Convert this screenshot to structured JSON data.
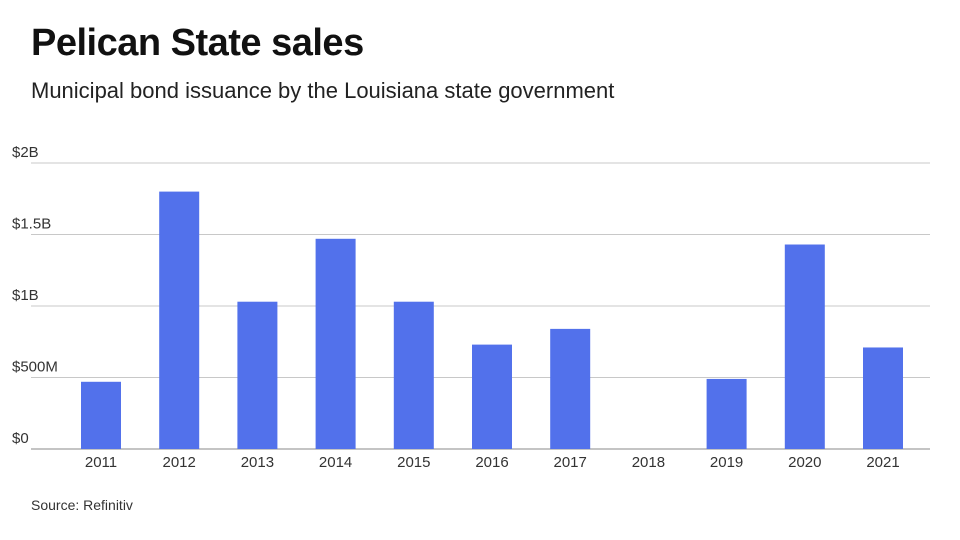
{
  "title": "Pelican State sales",
  "subtitle": "Municipal bond issuance by the Louisiana state government",
  "source": "Source: Refinitiv",
  "colors": {
    "bar": "#5271eb",
    "grid": "#c8c8c8",
    "axis": "#888888"
  },
  "chart_data": {
    "type": "bar",
    "title": "Pelican State sales",
    "subtitle": "Municipal bond issuance by the Louisiana state government",
    "xlabel": "",
    "ylabel": "",
    "categories": [
      "2011",
      "2012",
      "2013",
      "2014",
      "2015",
      "2016",
      "2017",
      "2018",
      "2019",
      "2020",
      "2021"
    ],
    "values": [
      470000000,
      1800000000,
      1030000000,
      1470000000,
      1030000000,
      730000000,
      840000000,
      0,
      490000000,
      1430000000,
      710000000
    ],
    "ylim": [
      0,
      2000000000
    ],
    "yticks": [
      {
        "value": 0,
        "label": "$0"
      },
      {
        "value": 500000000,
        "label": "$500M"
      },
      {
        "value": 1000000000,
        "label": "$1B"
      },
      {
        "value": 1500000000,
        "label": "$1.5B"
      },
      {
        "value": 2000000000,
        "label": "$2B"
      }
    ],
    "grid": true,
    "legend": "none"
  }
}
